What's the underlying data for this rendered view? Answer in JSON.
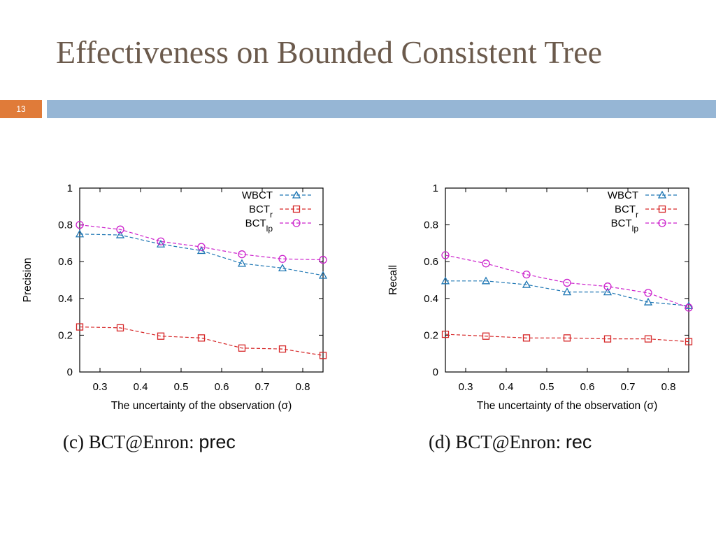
{
  "slide": {
    "title": "Effectiveness on Bounded Consistent Tree",
    "number": "13"
  },
  "colors": {
    "title_text": "#6b5a4c",
    "slide_number_bg": "#e07b39",
    "header_bar": "#96b6d5"
  },
  "chart_data": [
    {
      "type": "line",
      "caption_prefix": "(c) BCT@Enron:",
      "caption_metric": "prec",
      "xlabel": "The uncertainty of the observation (σ)",
      "ylabel": "Precision",
      "x": [
        0.25,
        0.35,
        0.45,
        0.55,
        0.65,
        0.75,
        0.85
      ],
      "xlim": [
        0.25,
        0.85
      ],
      "ylim": [
        0,
        1
      ],
      "x_ticks": [
        0.3,
        0.4,
        0.5,
        0.6,
        0.7,
        0.8
      ],
      "y_ticks": [
        0,
        0.2,
        0.4,
        0.6,
        0.8,
        1
      ],
      "legend_position": "top-right",
      "grid": false,
      "series": [
        {
          "name": "WBCT",
          "name_sub": "",
          "marker": "triangle",
          "color": "#1f77b4",
          "values": [
            0.75,
            0.745,
            0.695,
            0.66,
            0.59,
            0.565,
            0.525
          ]
        },
        {
          "name": "BCT",
          "name_sub": "r",
          "marker": "square",
          "color": "#d62728",
          "values": [
            0.245,
            0.24,
            0.195,
            0.185,
            0.13,
            0.125,
            0.09
          ]
        },
        {
          "name": "BCT",
          "name_sub": "lp",
          "marker": "circle",
          "color": "#cc22cc",
          "values": [
            0.8,
            0.775,
            0.71,
            0.68,
            0.64,
            0.615,
            0.61
          ]
        }
      ]
    },
    {
      "type": "line",
      "caption_prefix": "(d) BCT@Enron:",
      "caption_metric": "rec",
      "xlabel": "The uncertainty of the observation (σ)",
      "ylabel": "Recall",
      "x": [
        0.25,
        0.35,
        0.45,
        0.55,
        0.65,
        0.75,
        0.85
      ],
      "xlim": [
        0.25,
        0.85
      ],
      "ylim": [
        0,
        1
      ],
      "x_ticks": [
        0.3,
        0.4,
        0.5,
        0.6,
        0.7,
        0.8
      ],
      "y_ticks": [
        0,
        0.2,
        0.4,
        0.6,
        0.8,
        1
      ],
      "legend_position": "top-right",
      "grid": false,
      "series": [
        {
          "name": "WBCT",
          "name_sub": "",
          "marker": "triangle",
          "color": "#1f77b4",
          "values": [
            0.495,
            0.495,
            0.475,
            0.435,
            0.435,
            0.38,
            0.36
          ]
        },
        {
          "name": "BCT",
          "name_sub": "r",
          "marker": "square",
          "color": "#d62728",
          "values": [
            0.205,
            0.195,
            0.185,
            0.185,
            0.18,
            0.18,
            0.165
          ]
        },
        {
          "name": "BCT",
          "name_sub": "lp",
          "marker": "circle",
          "color": "#cc22cc",
          "values": [
            0.635,
            0.59,
            0.53,
            0.485,
            0.465,
            0.43,
            0.35
          ]
        }
      ]
    }
  ]
}
